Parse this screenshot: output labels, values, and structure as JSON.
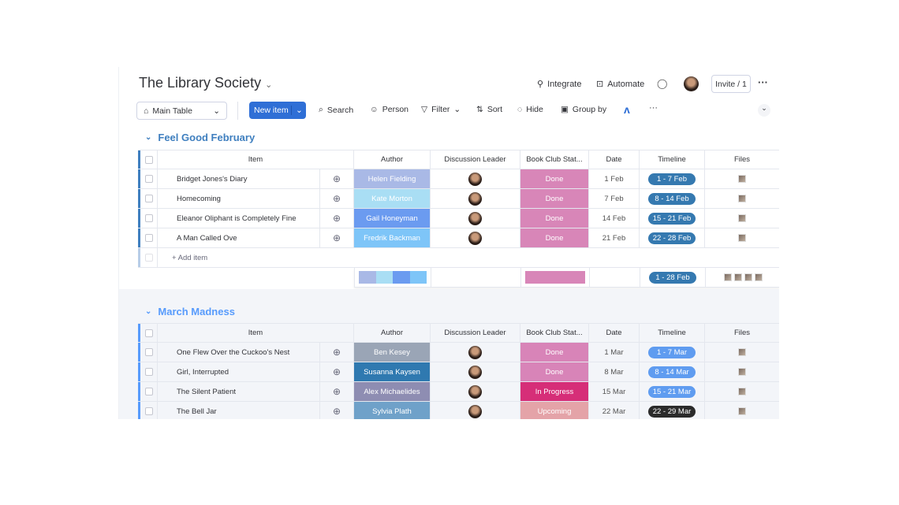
{
  "header": {
    "title": "The Library Society",
    "integrate": "Integrate",
    "automate": "Automate",
    "invite": "Invite / 1"
  },
  "toolbar": {
    "view": "Main Table",
    "new_item": "New item",
    "search": "Search",
    "person": "Person",
    "filter": "Filter",
    "sort": "Sort",
    "hide": "Hide",
    "group_by": "Group by"
  },
  "columns": {
    "item": "Item",
    "author": "Author",
    "leader": "Discussion Leader",
    "status": "Book Club Stat...",
    "date": "Date",
    "timeline": "Timeline",
    "files": "Files"
  },
  "colors": {
    "feb_group": "#3f7fbf",
    "mar_group": "#579bfc",
    "done": "#d886b8",
    "in_progress": "#d62e78",
    "upcoming": "#e4a3a8"
  },
  "groups": [
    {
      "name": "Feel Good February",
      "add_item": "+ Add item",
      "summary_timeline": "1 - 28 Feb",
      "rows": [
        {
          "item": "Bridget Jones's Diary",
          "author": "Helen Fielding",
          "author_color": "#a9b9e6",
          "status": "Done",
          "status_color": "#d886b8",
          "date": "1 Feb",
          "timeline": "1 - 7 Feb",
          "timeline_color": "#3579b0"
        },
        {
          "item": "Homecoming",
          "author": "Kate Morton",
          "author_color": "#a9def4",
          "status": "Done",
          "status_color": "#d886b8",
          "date": "7 Feb",
          "timeline": "8 - 14 Feb",
          "timeline_color": "#3579b0"
        },
        {
          "item": "Eleanor Oliphant is Completely Fine",
          "author": "Gail Honeyman",
          "author_color": "#6b9bf0",
          "status": "Done",
          "status_color": "#d886b8",
          "date": "14 Feb",
          "timeline": "15 - 21 Feb",
          "timeline_color": "#3579b0"
        },
        {
          "item": "A Man Called Ove",
          "author": "Fredrik Backman",
          "author_color": "#7ec5f8",
          "status": "Done",
          "status_color": "#d886b8",
          "date": "21 Feb",
          "timeline": "22 - 28 Feb",
          "timeline_color": "#3579b0"
        }
      ]
    },
    {
      "name": "March Madness",
      "rows": [
        {
          "item": "One Flew Over the Cuckoo's Nest",
          "author": "Ben Kesey",
          "author_color": "#9aa5b6",
          "status": "Done",
          "status_color": "#d884b8",
          "date": "1 Mar",
          "timeline": "1 - 7 Mar",
          "timeline_color": "#5f9cf0"
        },
        {
          "item": "Girl, Interrupted",
          "author": "Susanna Kaysen",
          "author_color": "#2f79b0",
          "status": "Done",
          "status_color": "#d884b8",
          "date": "8 Mar",
          "timeline": "8 - 14 Mar",
          "timeline_color": "#5f9cf0"
        },
        {
          "item": "The Silent Patient",
          "author": "Alex Michaelides",
          "author_color": "#8e8db2",
          "status": "In Progress",
          "status_color": "#d62e78",
          "date": "15 Mar",
          "timeline": "15 - 21 Mar",
          "timeline_color": "#5f9cf0"
        },
        {
          "item": "The Bell Jar",
          "author": "Sylvia Plath",
          "author_color": "#6fa1c9",
          "status": "Upcoming",
          "status_color": "#e4a3a8",
          "date": "22 Mar",
          "timeline": "22 - 29 Mar",
          "timeline_color": "#2b2b2b"
        }
      ]
    }
  ]
}
